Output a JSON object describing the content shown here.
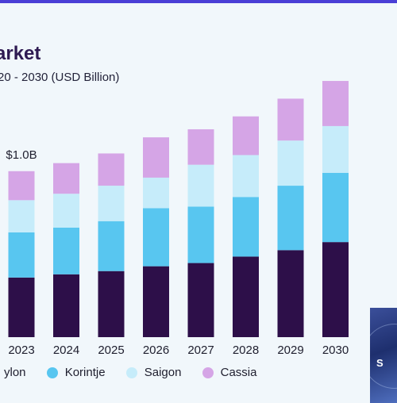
{
  "header": {
    "title": "arket",
    "subtitle": "20 - 2030 (USD Billion)"
  },
  "chart_data": {
    "type": "bar",
    "stacked": true,
    "categories": [
      "2023",
      "2024",
      "2025",
      "2026",
      "2027",
      "2028",
      "2029",
      "2030"
    ],
    "series": [
      {
        "name": "ylon",
        "color": "#2d0f49",
        "values": [
          0.37,
          0.39,
          0.41,
          0.44,
          0.46,
          0.5,
          0.54,
          0.59
        ]
      },
      {
        "name": "Korintje",
        "color": "#58c6f0",
        "values": [
          0.28,
          0.29,
          0.31,
          0.36,
          0.35,
          0.37,
          0.4,
          0.43
        ]
      },
      {
        "name": "Saigon",
        "color": "#c6ecfa",
        "values": [
          0.2,
          0.21,
          0.22,
          0.19,
          0.26,
          0.26,
          0.28,
          0.29
        ]
      },
      {
        "name": "Cassia",
        "color": "#d5a5e6",
        "values": [
          0.18,
          0.19,
          0.2,
          0.25,
          0.22,
          0.24,
          0.26,
          0.28
        ]
      }
    ],
    "ylim": [
      0,
      1.6
    ],
    "annotations": [
      {
        "category": "2023",
        "text": "$1.0B"
      }
    ],
    "grid": false,
    "legend_position": "bottom"
  },
  "legend": {
    "items": [
      {
        "label": "ylon",
        "color": "#2d0f49"
      },
      {
        "label": "Korintje",
        "color": "#58c6f0"
      },
      {
        "label": "Saigon",
        "color": "#c6ecfa"
      },
      {
        "label": "Cassia",
        "color": "#d5a5e6"
      }
    ]
  },
  "logo": {
    "text": "S"
  }
}
